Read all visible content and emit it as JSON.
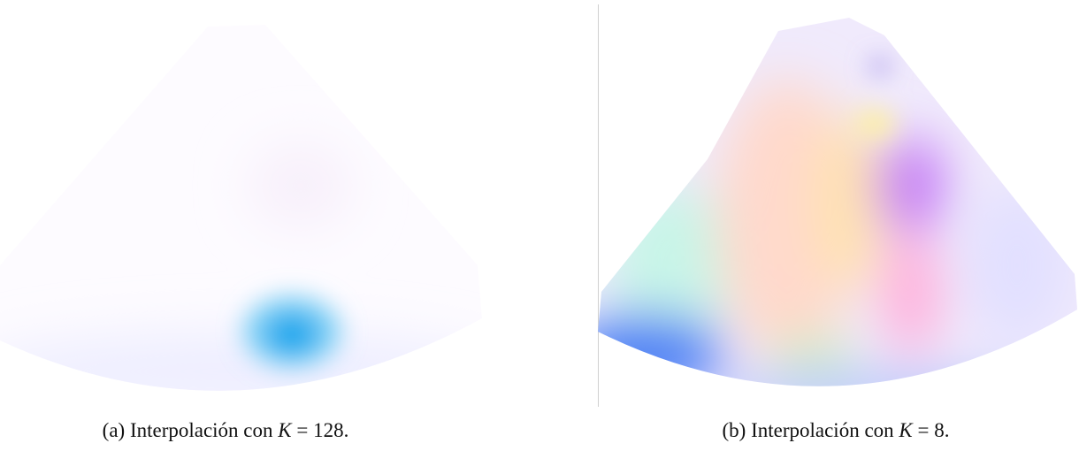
{
  "figures": [
    {
      "caption": {
        "label": "(a)",
        "text": "Interpolación con",
        "variable": "K",
        "relation": "= 128",
        "end": "."
      }
    },
    {
      "caption": {
        "label": "(b)",
        "text": "Interpolación con",
        "variable": "K",
        "relation": "= 8",
        "end": "."
      }
    }
  ]
}
